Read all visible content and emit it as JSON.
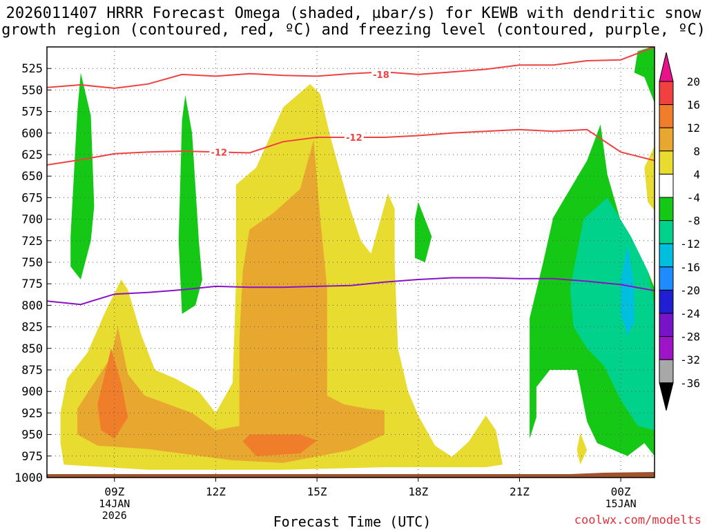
{
  "title_line1": "2026011407 HRRR Forecast Omega (shaded, µbar/s) for KEWB with dendritic snow",
  "title_line2": "growth region (contoured, red, ºC) and freezing level (contoured, purple, ºC)",
  "credit": "coolwx.com/modelts",
  "chart_data": {
    "type": "contour",
    "xlabel": "Forecast Time (UTC)",
    "ylabel": "",
    "x_range_hours": [
      7,
      25
    ],
    "y_range_hpa": [
      500,
      1000
    ],
    "y_ticks": [
      525,
      550,
      575,
      600,
      625,
      650,
      675,
      700,
      725,
      750,
      775,
      800,
      825,
      850,
      875,
      900,
      925,
      950,
      975,
      1000
    ],
    "x_ticks": [
      {
        "hour": 9,
        "label": "09Z",
        "sub": [
          "14JAN",
          "2026"
        ]
      },
      {
        "hour": 12,
        "label": "12Z",
        "sub": []
      },
      {
        "hour": 15,
        "label": "15Z",
        "sub": []
      },
      {
        "hour": 18,
        "label": "18Z",
        "sub": []
      },
      {
        "hour": 21,
        "label": "21Z",
        "sub": []
      },
      {
        "hour": 24,
        "label": "00Z",
        "sub": [
          "15JAN"
        ]
      }
    ],
    "colorbar": {
      "labels": [
        "20",
        "16",
        "12",
        "8",
        "4",
        "-4",
        "-8",
        "-12",
        "-16",
        "-20",
        "-24",
        "-28",
        "-32",
        "-36"
      ],
      "colors": [
        "#e8128a",
        "#f04040",
        "#f07d2a",
        "#e8a830",
        "#e8dc30",
        "#ffffff",
        "#16c816",
        "#00d28c",
        "#00bede",
        "#1e8cff",
        "#2020d2",
        "#7814c8",
        "#a014c8",
        "#a8a8a8",
        "#000000"
      ]
    },
    "contour_labels": [
      {
        "text": "-18",
        "hour": 16.9,
        "hpa": 532
      },
      {
        "text": "-12",
        "hour": 16.1,
        "hpa": 605
      },
      {
        "text": "-12",
        "hour": 12.1,
        "hpa": 622
      }
    ],
    "dgz_top_minus18": [
      [
        7,
        547
      ],
      [
        8,
        544
      ],
      [
        9,
        548
      ],
      [
        10,
        543
      ],
      [
        11,
        532
      ],
      [
        12,
        534
      ],
      [
        13,
        531
      ],
      [
        14,
        533
      ],
      [
        15,
        534
      ],
      [
        16,
        531
      ],
      [
        17,
        529
      ],
      [
        18,
        532
      ],
      [
        19,
        529
      ],
      [
        20,
        526
      ],
      [
        21,
        521
      ],
      [
        22,
        521
      ],
      [
        23,
        516
      ],
      [
        24,
        515
      ],
      [
        25,
        500
      ]
    ],
    "dgz_bottom_minus12": [
      [
        7,
        637
      ],
      [
        8,
        631
      ],
      [
        9,
        624
      ],
      [
        10,
        622
      ],
      [
        11,
        621
      ],
      [
        12,
        622
      ],
      [
        13,
        623
      ],
      [
        14,
        610
      ],
      [
        15,
        605
      ],
      [
        16,
        605
      ],
      [
        17,
        605
      ],
      [
        18,
        603
      ],
      [
        19,
        600
      ],
      [
        20,
        598
      ],
      [
        21,
        596
      ],
      [
        22,
        598
      ],
      [
        23,
        596
      ],
      [
        24,
        622
      ],
      [
        25,
        632
      ]
    ],
    "freezing_level": [
      [
        7,
        795
      ],
      [
        8,
        799
      ],
      [
        9,
        787
      ],
      [
        10,
        785
      ],
      [
        11,
        782
      ],
      [
        12,
        778
      ],
      [
        13,
        779
      ],
      [
        14,
        779
      ],
      [
        15,
        778
      ],
      [
        16,
        777
      ],
      [
        17,
        773
      ],
      [
        18,
        770
      ],
      [
        19,
        768
      ],
      [
        20,
        768
      ],
      [
        21,
        769
      ],
      [
        22,
        769
      ],
      [
        23,
        772
      ],
      [
        24,
        776
      ],
      [
        25,
        783
      ]
    ],
    "omega_regions": [
      {
        "level": "-8",
        "color": "#16c816",
        "points": [
          [
            7.7,
            720
          ],
          [
            7.9,
            575
          ],
          [
            8.0,
            530
          ],
          [
            8.3,
            580
          ],
          [
            8.4,
            685
          ],
          [
            8.3,
            725
          ],
          [
            8.0,
            770
          ],
          [
            7.7,
            755
          ]
        ]
      },
      {
        "level": "-8",
        "color": "#16c816",
        "points": [
          [
            10.9,
            725
          ],
          [
            11.0,
            585
          ],
          [
            11.1,
            556
          ],
          [
            11.3,
            600
          ],
          [
            11.5,
            725
          ],
          [
            11.6,
            770
          ],
          [
            11.4,
            800
          ],
          [
            11.0,
            810
          ]
        ]
      },
      {
        "level": "-8",
        "color": "#16c816",
        "points": [
          [
            17.9,
            700
          ],
          [
            18.0,
            680
          ],
          [
            18.4,
            720
          ],
          [
            18.2,
            750
          ],
          [
            17.9,
            745
          ]
        ]
      },
      {
        "level": "-8",
        "color": "#16c816",
        "points": [
          [
            21.3,
            815
          ],
          [
            21.7,
            750
          ],
          [
            22.0,
            698
          ],
          [
            23.0,
            632
          ],
          [
            23.4,
            590
          ],
          [
            23.6,
            648
          ],
          [
            24.2,
            730
          ],
          [
            24.8,
            760
          ],
          [
            25,
            780
          ],
          [
            25,
            975
          ],
          [
            24.7,
            960
          ],
          [
            24.2,
            975
          ],
          [
            23.3,
            960
          ],
          [
            23.0,
            935
          ],
          [
            22.7,
            875
          ],
          [
            21.9,
            875
          ],
          [
            21.5,
            895
          ],
          [
            21.5,
            930
          ],
          [
            21.3,
            955
          ],
          [
            21.3,
            870
          ]
        ]
      },
      {
        "level": "-12",
        "color": "#00d28c",
        "points": [
          [
            22.5,
            780
          ],
          [
            22.9,
            700
          ],
          [
            23.6,
            675
          ],
          [
            24.3,
            720
          ],
          [
            24.8,
            760
          ],
          [
            25,
            800
          ],
          [
            25,
            945
          ],
          [
            24.5,
            940
          ],
          [
            24.0,
            910
          ],
          [
            23.5,
            870
          ],
          [
            23.0,
            850
          ],
          [
            22.6,
            825
          ]
        ]
      },
      {
        "level": "-16",
        "color": "#00bede",
        "points": [
          [
            24.0,
            770
          ],
          [
            24.2,
            730
          ],
          [
            24.4,
            780
          ],
          [
            24.4,
            820
          ],
          [
            24.2,
            835
          ],
          [
            24.0,
            810
          ]
        ]
      },
      {
        "level": "-8",
        "color": "#16c816",
        "points": [
          [
            24.4,
            530
          ],
          [
            24.5,
            505
          ],
          [
            24.9,
            500
          ],
          [
            25,
            500
          ],
          [
            25,
            565
          ],
          [
            24.7,
            535
          ]
        ]
      },
      {
        "level": "4",
        "color": "#e8dc30",
        "points": [
          [
            7.4,
            925
          ],
          [
            7.6,
            885
          ],
          [
            8.2,
            855
          ],
          [
            8.7,
            810
          ],
          [
            9.2,
            770
          ],
          [
            9.4,
            782
          ],
          [
            9.8,
            835
          ],
          [
            10.2,
            875
          ],
          [
            10.8,
            885
          ],
          [
            11.5,
            900
          ],
          [
            12.0,
            925
          ],
          [
            12.5,
            890
          ],
          [
            12.6,
            775
          ],
          [
            12.6,
            660
          ],
          [
            13.2,
            640
          ],
          [
            14.0,
            570
          ],
          [
            14.8,
            543
          ],
          [
            15.1,
            555
          ],
          [
            15.4,
            605
          ],
          [
            16.0,
            690
          ],
          [
            16.3,
            725
          ],
          [
            16.6,
            740
          ],
          [
            17.1,
            670
          ],
          [
            17.3,
            688
          ],
          [
            17.3,
            750
          ],
          [
            17.4,
            850
          ],
          [
            17.7,
            900
          ],
          [
            18.0,
            928
          ],
          [
            18.5,
            963
          ],
          [
            19.0,
            976
          ],
          [
            19.5,
            958
          ],
          [
            20.0,
            928
          ],
          [
            20.3,
            945
          ],
          [
            20.5,
            985
          ],
          [
            20.0,
            988
          ],
          [
            17.0,
            988
          ],
          [
            14.0,
            991
          ],
          [
            10.0,
            991
          ],
          [
            7.5,
            985
          ],
          [
            7.4,
            960
          ]
        ]
      },
      {
        "level": "4",
        "color": "#e8dc30",
        "points": [
          [
            24.7,
            640
          ],
          [
            25,
            615
          ],
          [
            25,
            690
          ],
          [
            24.8,
            680
          ]
        ]
      },
      {
        "level": "4",
        "color": "#e8dc30",
        "points": [
          [
            22.7,
            968
          ],
          [
            22.8,
            948
          ],
          [
            23.0,
            968
          ],
          [
            22.8,
            985
          ]
        ]
      },
      {
        "level": "8",
        "color": "#e8a830",
        "points": [
          [
            7.9,
            920
          ],
          [
            8.4,
            890
          ],
          [
            8.9,
            860
          ],
          [
            9.1,
            825
          ],
          [
            9.4,
            880
          ],
          [
            9.9,
            905
          ],
          [
            10.6,
            915
          ],
          [
            11.3,
            925
          ],
          [
            12.0,
            945
          ],
          [
            12.7,
            940
          ],
          [
            12.7,
            840
          ],
          [
            12.8,
            760
          ],
          [
            13.0,
            712
          ],
          [
            13.7,
            693
          ],
          [
            14.5,
            665
          ],
          [
            14.9,
            608
          ],
          [
            15.1,
            700
          ],
          [
            15.3,
            780
          ],
          [
            15.3,
            905
          ],
          [
            15.8,
            915
          ],
          [
            16.5,
            920
          ],
          [
            17.0,
            922
          ],
          [
            17.0,
            950
          ],
          [
            16.0,
            968
          ],
          [
            14.0,
            983
          ],
          [
            12.5,
            980
          ],
          [
            10.0,
            967
          ],
          [
            8.5,
            963
          ],
          [
            7.9,
            950
          ]
        ]
      },
      {
        "level": "12",
        "color": "#f07d2a",
        "points": [
          [
            8.5,
            915
          ],
          [
            8.9,
            850
          ],
          [
            9.2,
            890
          ],
          [
            9.4,
            930
          ],
          [
            9.0,
            955
          ],
          [
            8.6,
            945
          ]
        ]
      },
      {
        "level": "12",
        "color": "#f07d2a",
        "points": [
          [
            12.8,
            958
          ],
          [
            13.0,
            950
          ],
          [
            14.5,
            950
          ],
          [
            15.0,
            957
          ],
          [
            14.5,
            972
          ],
          [
            13.2,
            975
          ]
        ]
      }
    ]
  }
}
